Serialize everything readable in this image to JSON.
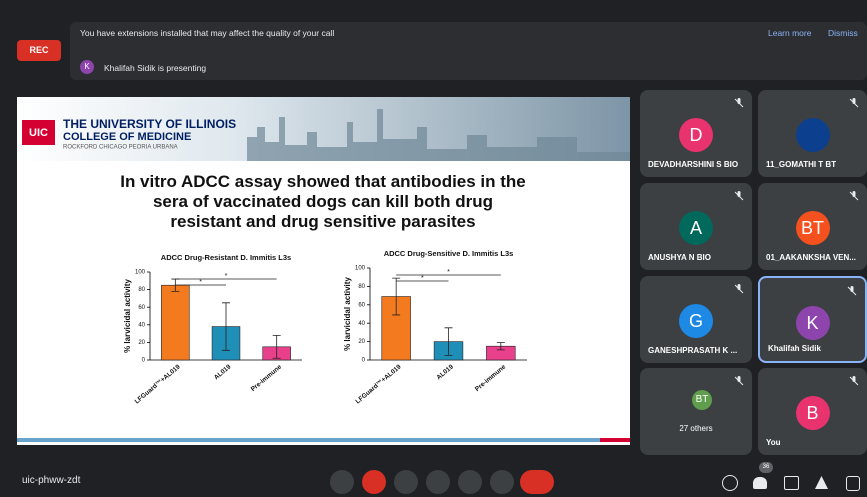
{
  "banner": {
    "rec": "REC",
    "message": "You have extensions installed that may affect the quality of your call",
    "learn_more": "Learn more",
    "dismiss": "Dismiss",
    "presenter_initial": "K",
    "presenting": "Khalifah Sidik is presenting"
  },
  "slide": {
    "logo": "UIC",
    "university": "THE UNIVERSITY OF ILLINOIS",
    "college": "COLLEGE OF MEDICINE",
    "campuses": "ROCKFORD CHICAGO PEORIA URBANA",
    "title": "In vitro ADCC assay showed that antibodies in the sera of vaccinated dogs can kill both drug resistant and drug sensitive parasites",
    "charts": [
      {
        "type": "bar",
        "title": "ADCC Drug-Resistant D. Immitis L3s",
        "y_label": "% larvicidal activity",
        "categories": [
          "LFGuard™+AL019",
          "AL019",
          "Pre-immune"
        ],
        "values": [
          85,
          38,
          15
        ],
        "errors": [
          7,
          27,
          13
        ],
        "colors": [
          "#f47a20",
          "#1f8fb8",
          "#e8408a"
        ],
        "ylim": [
          0,
          100
        ],
        "yticks": [
          0,
          20,
          40,
          60,
          80,
          100
        ],
        "significance": [
          "*",
          "*"
        ]
      },
      {
        "type": "bar",
        "title": "ADCC Drug-Sensitive D. Immitis L3s",
        "y_label": "% larvicidal activity",
        "categories": [
          "LFGuard™+AL019",
          "AL019",
          "Pre-immune"
        ],
        "values": [
          69,
          20,
          15
        ],
        "errors": [
          20,
          15,
          4
        ],
        "colors": [
          "#f47a20",
          "#1f8fb8",
          "#e8408a"
        ],
        "ylim": [
          0,
          100
        ],
        "yticks": [
          0,
          20,
          40,
          60,
          80,
          100
        ],
        "significance": [
          "*",
          "*"
        ]
      }
    ]
  },
  "participants": [
    {
      "initial": "D",
      "name": "DEVADHARSHINI S BIO",
      "color": "#e8336e"
    },
    {
      "name": "11_GOMATHI T BT",
      "color": "#0d3f8f"
    },
    {
      "initial": "A",
      "name": "ANUSHYA N BIO",
      "color": "#00695c"
    },
    {
      "initial": "BT",
      "name": "01_AAKANKSHA VEN...",
      "color": "#f4511e"
    },
    {
      "initial": "G",
      "name": "GANESHPRASATH K ...",
      "color": "#1e88e5"
    },
    {
      "initial": "K",
      "name": "Khalifah Sidik",
      "color": "#8e44ad"
    },
    {
      "initial": "BT",
      "name": "27 others",
      "color": "#5f9e4c"
    },
    {
      "initial": "B",
      "name": "You",
      "color": "#e8336e"
    }
  ],
  "bottom": {
    "meeting_code": "uic-phww-zdt",
    "participant_count": "36"
  }
}
